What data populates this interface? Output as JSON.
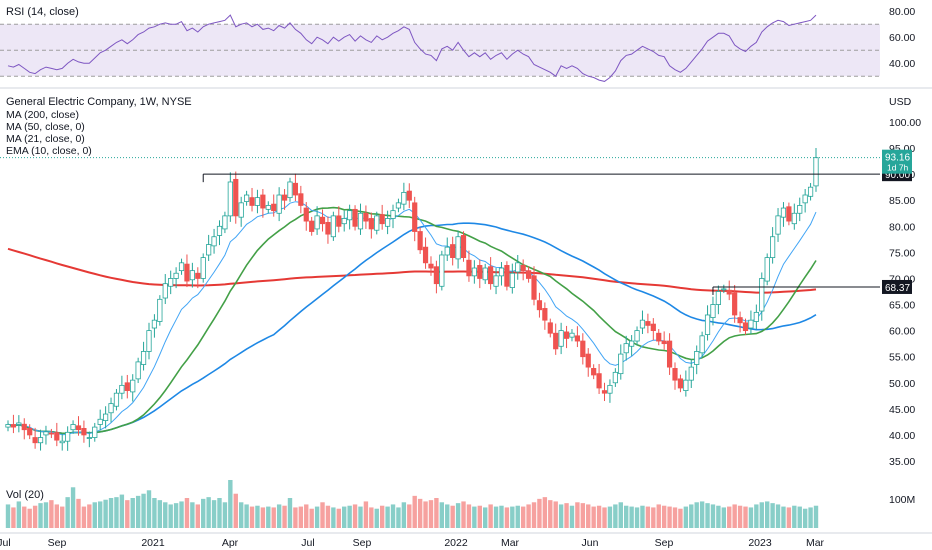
{
  "rsi_panel": {
    "legend": "RSI (14, close)",
    "ticks": [
      "80.00",
      "60.00",
      "40.00"
    ],
    "tick_values": [
      80,
      60,
      40
    ],
    "bands": [
      70,
      50,
      30
    ],
    "ylim": [
      24,
      84
    ]
  },
  "price_panel": {
    "title": "General Electric Company, 1W, NYSE",
    "currency": "USD",
    "indicators": [
      "MA (200, close)",
      "MA (50, close, 0)",
      "MA (21, close, 0)",
      "EMA (10, close, 0)"
    ],
    "ticks": [
      "100.00",
      "95.00",
      "90.00",
      "85.00",
      "80.00",
      "75.00",
      "70.00",
      "65.00",
      "60.00",
      "55.00",
      "50.00",
      "45.00",
      "40.00",
      "35.00"
    ],
    "tick_values": [
      100,
      95,
      90,
      85,
      80,
      75,
      70,
      65,
      60,
      55,
      50,
      45,
      40,
      35
    ],
    "ylim": [
      31.8,
      106
    ],
    "price_label": {
      "value": 93.16,
      "text": "93.16",
      "countdown": "1d 7h",
      "color": "#26a69a"
    },
    "levels": [
      {
        "value": 90.0,
        "text": "90.00",
        "start": "2021-03",
        "line_color": "#131722"
      },
      {
        "value": 68.37,
        "text": "68.37",
        "start": "2022-10",
        "line_color": "#131722"
      }
    ]
  },
  "volume_panel": {
    "legend": "Vol (20)",
    "tick": "100M",
    "tick_value": 100
  },
  "time_axis": {
    "labels": [
      "Jul",
      "Sep",
      "2021",
      "Apr",
      "Jul",
      "Sep",
      "2022",
      "Mar",
      "Jun",
      "Sep",
      "2023",
      "Mar"
    ]
  },
  "colors": {
    "up": "#26a69a",
    "down": "#ef5350",
    "ma200": "#e53935",
    "ma50": "#1e88e5",
    "ma21": "#43a047",
    "ema10": "#42a5f5",
    "rsi": "#7e57c2",
    "rsi_band": "#ede7f6"
  },
  "chart_data": {
    "type": "candlestick",
    "title": "General Electric Company, 1W, NYSE",
    "interval": "weekly",
    "start": "2020-07",
    "end": "2023-02",
    "close": [
      42.0,
      41.5,
      42.3,
      41.0,
      40.0,
      38.5,
      39.5,
      40.6,
      40.2,
      39.0,
      38.8,
      40.5,
      42.0,
      41.0,
      40.0,
      39.5,
      41.5,
      43.0,
      44.0,
      46.0,
      48.0,
      49.5,
      48.5,
      50.5,
      54.0,
      56.0,
      60.0,
      62.0,
      66.0,
      69.0,
      70.0,
      71.0,
      73.0,
      69.5,
      71.5,
      70.0,
      74.0,
      76.5,
      78.0,
      80.0,
      82.0,
      88.5,
      82.0,
      84.5,
      86.0,
      84.0,
      85.5,
      83.5,
      84.0,
      83.0,
      86.0,
      85.0,
      88.5,
      86.0,
      84.0,
      81.0,
      79.0,
      82.0,
      80.5,
      78.5,
      82.0,
      80.0,
      81.5,
      83.0,
      80.0,
      82.5,
      81.0,
      79.5,
      82.0,
      80.5,
      81.5,
      83.0,
      84.5,
      86.5,
      85.0,
      79.0,
      75.5,
      73.0,
      72.0,
      69.0,
      74.5,
      76.0,
      74.0,
      78.0,
      74.0,
      70.5,
      72.0,
      70.0,
      72.0,
      69.0,
      70.5,
      72.0,
      68.5,
      71.0,
      73.0,
      71.5,
      70.0,
      66.0,
      64.0,
      62.0,
      59.5,
      56.5,
      60.0,
      58.5,
      59.5,
      58.0,
      55.0,
      53.0,
      51.5,
      49.0,
      48.0,
      49.5,
      52.0,
      55.5,
      57.5,
      58.0,
      60.0,
      62.0,
      61.0,
      60.0,
      58.0,
      57.5,
      53.0,
      50.5,
      49.0,
      50.5,
      53.0,
      56.0,
      59.0,
      63.0,
      65.0,
      67.5,
      68.0,
      67.0,
      63.0,
      61.5,
      60.0,
      62.0,
      63.5,
      70.0,
      74.0,
      78.0,
      82.0,
      83.5,
      81.0,
      82.5,
      84.0,
      86.0,
      87.5,
      93.16
    ],
    "rsi": [
      38,
      37,
      39,
      36,
      33,
      32,
      35,
      37,
      36,
      35,
      36,
      40,
      43,
      41,
      40,
      40,
      44,
      48,
      50,
      53,
      56,
      58,
      55,
      58,
      62,
      64,
      67,
      68,
      70,
      71,
      70,
      70,
      72,
      65,
      67,
      64,
      68,
      70,
      71,
      72,
      73,
      77,
      68,
      70,
      71,
      68,
      70,
      66,
      67,
      65,
      69,
      67,
      71,
      66,
      63,
      58,
      55,
      60,
      58,
      55,
      60,
      57,
      60,
      62,
      57,
      61,
      58,
      56,
      61,
      58,
      60,
      63,
      65,
      68,
      66,
      56,
      51,
      47,
      46,
      42,
      51,
      53,
      50,
      56,
      50,
      45,
      48,
      45,
      48,
      43,
      46,
      48,
      43,
      47,
      50,
      47,
      45,
      39,
      37,
      35,
      33,
      30,
      38,
      36,
      38,
      36,
      32,
      30,
      29,
      27,
      26,
      29,
      34,
      42,
      46,
      47,
      50,
      53,
      51,
      49,
      46,
      45,
      38,
      35,
      33,
      36,
      41,
      46,
      51,
      57,
      60,
      63,
      63,
      61,
      54,
      51,
      49,
      53,
      56,
      64,
      68,
      71,
      73,
      72,
      69,
      70,
      71,
      72,
      73,
      77
    ],
    "volume": [
      55,
      48,
      62,
      50,
      45,
      52,
      58,
      60,
      65,
      55,
      50,
      72,
      95,
      68,
      50,
      55,
      60,
      62,
      66,
      70,
      72,
      78,
      65,
      70,
      75,
      80,
      88,
      70,
      65,
      60,
      55,
      58,
      62,
      70,
      60,
      55,
      68,
      72,
      65,
      70,
      60,
      112,
      80,
      60,
      55,
      50,
      52,
      48,
      50,
      48,
      55,
      52,
      70,
      48,
      50,
      55,
      45,
      50,
      60,
      52,
      48,
      45,
      50,
      52,
      55,
      50,
      62,
      48,
      45,
      52,
      50,
      55,
      48,
      60,
      55,
      75,
      68,
      62,
      65,
      70,
      60,
      55,
      52,
      58,
      62,
      55,
      50,
      52,
      48,
      55,
      50,
      52,
      48,
      50,
      52,
      50,
      55,
      60,
      68,
      72,
      65,
      62,
      55,
      58,
      52,
      60,
      58,
      55,
      50,
      52,
      48,
      50,
      55,
      60,
      52,
      50,
      48,
      52,
      50,
      48,
      55,
      52,
      50,
      48,
      45,
      50,
      55,
      60,
      62,
      58,
      55,
      52,
      48,
      50,
      55,
      52,
      50,
      48,
      55,
      60,
      62,
      58,
      55,
      50,
      48,
      52,
      50,
      45,
      48,
      52
    ]
  }
}
